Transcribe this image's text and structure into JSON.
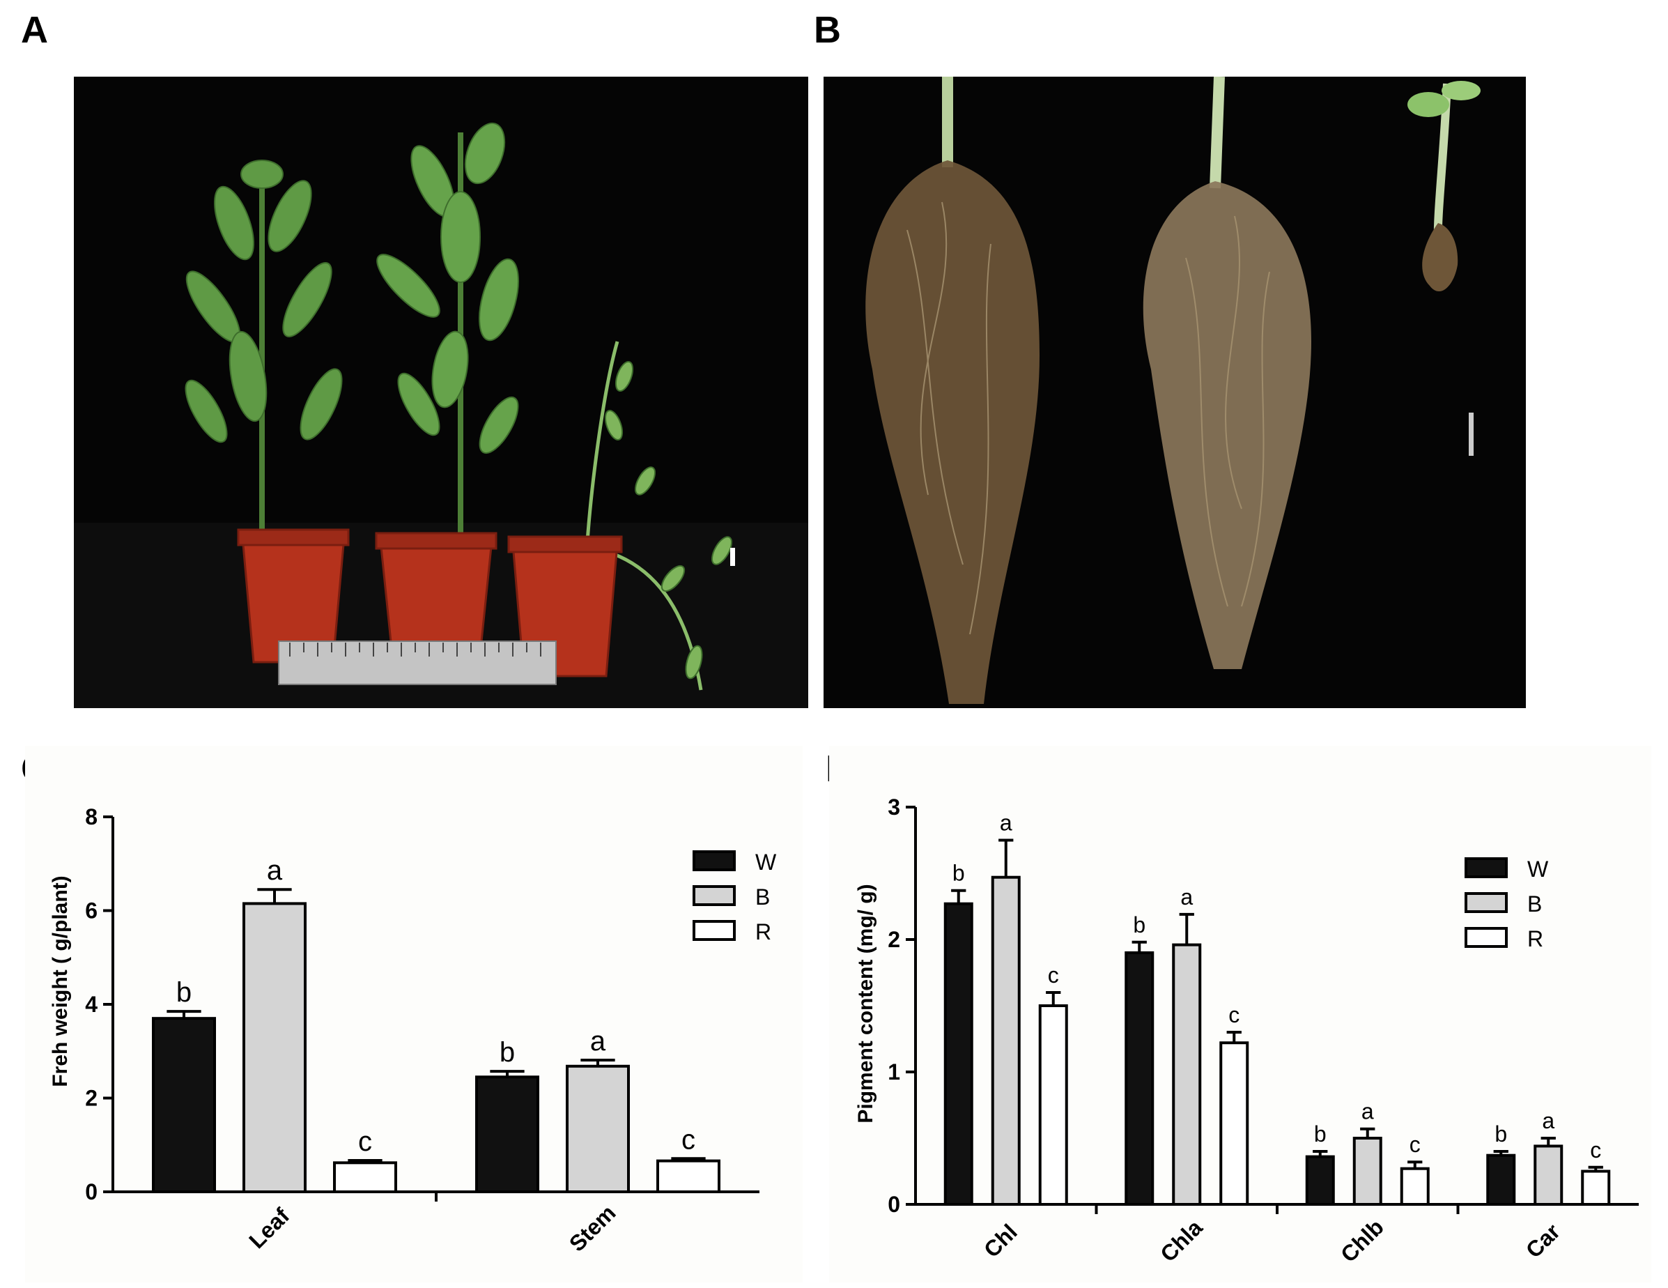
{
  "panels": {
    "a": {
      "letter": "A"
    },
    "b": {
      "letter": "B"
    },
    "c": {
      "letter": "C"
    },
    "d": {
      "letter": "D"
    }
  },
  "colors": {
    "W": "#111111",
    "B": "#d4d4d4",
    "R": "#ffffff",
    "photo_bg": "#050505",
    "leaf_green": "#5f9a45",
    "pot_red": "#b5321c",
    "root_brown": "#6e5638"
  },
  "photos": {
    "a_subject": "three potted plants with ruler",
    "b_subject": "root systems of three plants"
  },
  "chart_data": [
    {
      "type": "bar",
      "panel": "C",
      "categories": [
        "Leaf",
        "Stem"
      ],
      "ylabel": "Freh weight ( g/plant)",
      "xlabel": "",
      "ylim": [
        0,
        8
      ],
      "yticks": [
        "0",
        "2",
        "4",
        "6",
        "8"
      ],
      "legend_position": "top-right",
      "series": [
        {
          "name": "W",
          "values": [
            3.7,
            2.45
          ],
          "errors": [
            0.15,
            0.12
          ],
          "letters": [
            "b",
            "b"
          ]
        },
        {
          "name": "B",
          "values": [
            6.15,
            2.68
          ],
          "errors": [
            0.3,
            0.13
          ],
          "letters": [
            "a",
            "a"
          ]
        },
        {
          "name": "R",
          "values": [
            0.62,
            0.66
          ],
          "errors": [
            0.05,
            0.05
          ],
          "letters": [
            "c",
            "c"
          ]
        }
      ]
    },
    {
      "type": "bar",
      "panel": "D",
      "categories": [
        "Chl",
        "Chla",
        "Chlb",
        "Car"
      ],
      "ylabel": "Pigment content (mg/ g)",
      "xlabel": "",
      "ylim": [
        0,
        3
      ],
      "yticks": [
        "0",
        "1",
        "2",
        "3"
      ],
      "legend_position": "top-right",
      "series": [
        {
          "name": "W",
          "values": [
            2.27,
            1.9,
            0.36,
            0.37
          ],
          "errors": [
            0.1,
            0.08,
            0.04,
            0.03
          ],
          "letters": [
            "b",
            "b",
            "b",
            "b"
          ]
        },
        {
          "name": "B",
          "values": [
            2.47,
            1.96,
            0.5,
            0.44
          ],
          "errors": [
            0.28,
            0.23,
            0.07,
            0.06
          ],
          "letters": [
            "a",
            "a",
            "a",
            "a"
          ]
        },
        {
          "name": "R",
          "values": [
            1.5,
            1.22,
            0.27,
            0.25
          ],
          "errors": [
            0.1,
            0.08,
            0.05,
            0.03
          ],
          "letters": [
            "c",
            "c",
            "c",
            "c"
          ]
        }
      ]
    }
  ]
}
